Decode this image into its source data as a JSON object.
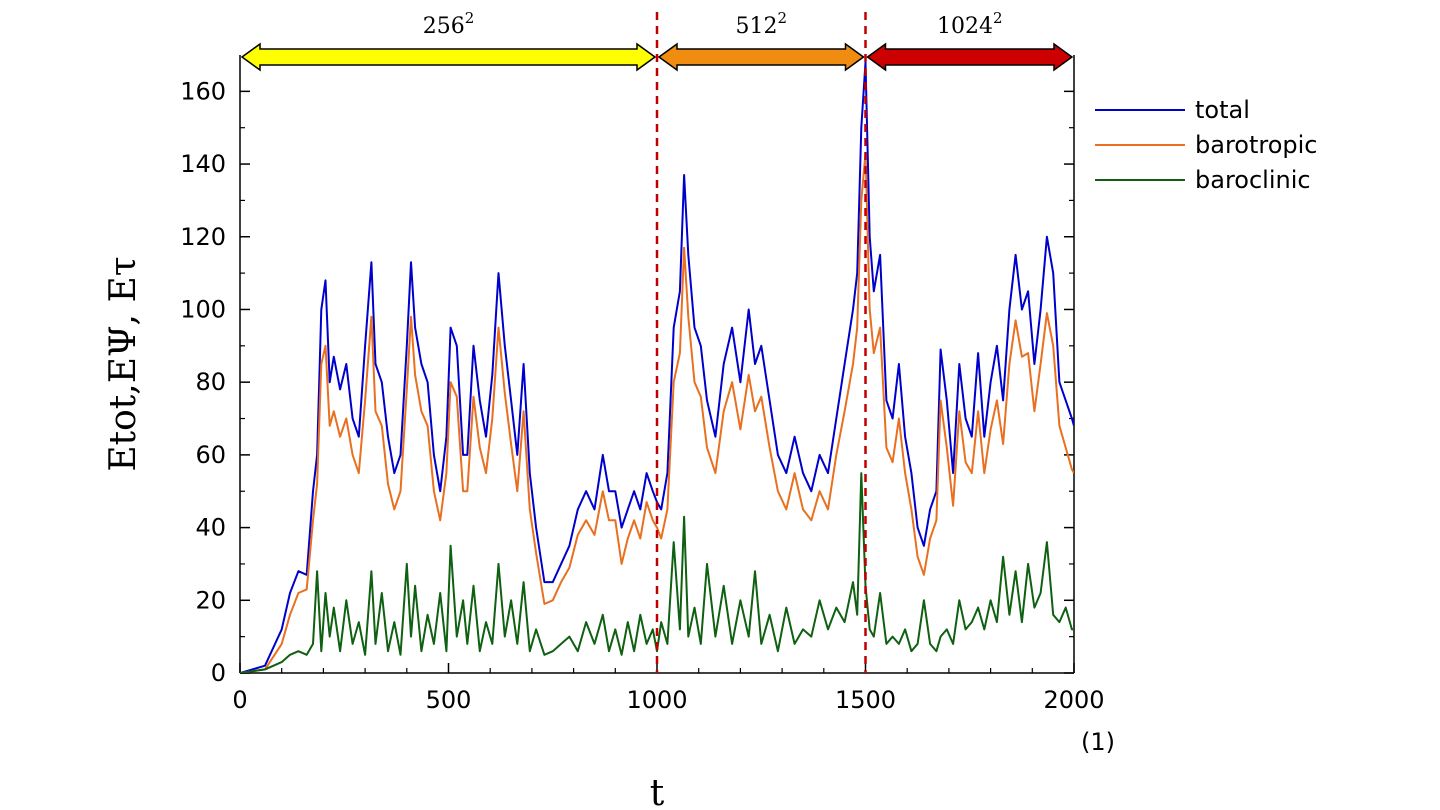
{
  "chart_data": {
    "type": "line",
    "xlabel": "t",
    "ylabel": "Etot,EΨ, Eτ",
    "xlim": [
      0,
      2000
    ],
    "ylim": [
      0,
      170
    ],
    "x_ticks": [
      "0",
      "500",
      "1000",
      "1500",
      "2000"
    ],
    "y_ticks": [
      "0",
      "20",
      "40",
      "60",
      "80",
      "100",
      "120",
      "140",
      "160"
    ],
    "figure_number": "(1)",
    "grid": false,
    "legend_position": "top-right (outside plot)",
    "resolution_segments": [
      {
        "label_base": "256",
        "label_exp": "2",
        "x_start": 0,
        "x_end": 1000,
        "color": "#ffff00"
      },
      {
        "label_base": "512",
        "label_exp": "2",
        "x_start": 1000,
        "x_end": 1500,
        "color": "#f08c10"
      },
      {
        "label_base": "1024",
        "label_exp": "2",
        "x_start": 1500,
        "x_end": 2000,
        "color": "#cc0000"
      }
    ],
    "dashed_lines_x": [
      1000,
      1500
    ],
    "dashed_color": "#c00000",
    "series": [
      {
        "name": "total",
        "color": "#0000cc",
        "x": [
          0,
          60,
          100,
          120,
          140,
          160,
          175,
          185,
          195,
          205,
          215,
          225,
          240,
          255,
          270,
          285,
          300,
          315,
          325,
          340,
          355,
          370,
          385,
          400,
          410,
          420,
          435,
          450,
          465,
          480,
          495,
          505,
          520,
          535,
          545,
          560,
          575,
          590,
          605,
          620,
          635,
          650,
          665,
          680,
          695,
          710,
          730,
          750,
          770,
          790,
          810,
          830,
          850,
          870,
          885,
          900,
          915,
          930,
          945,
          960,
          975,
          990,
          1000,
          1010,
          1025,
          1040,
          1055,
          1065,
          1075,
          1090,
          1105,
          1120,
          1140,
          1160,
          1180,
          1200,
          1220,
          1235,
          1250,
          1270,
          1290,
          1310,
          1330,
          1350,
          1370,
          1390,
          1410,
          1430,
          1450,
          1470,
          1480,
          1490,
          1500,
          1510,
          1520,
          1535,
          1550,
          1565,
          1580,
          1595,
          1610,
          1625,
          1640,
          1655,
          1670,
          1680,
          1695,
          1710,
          1725,
          1740,
          1755,
          1770,
          1785,
          1800,
          1815,
          1830,
          1845,
          1860,
          1875,
          1890,
          1905,
          1920,
          1935,
          1950,
          1965,
          1980,
          1995,
          2000
        ],
        "values": [
          0,
          2,
          12,
          22,
          28,
          27,
          50,
          60,
          100,
          108,
          80,
          87,
          78,
          85,
          70,
          65,
          90,
          113,
          85,
          80,
          65,
          55,
          60,
          90,
          113,
          95,
          85,
          80,
          60,
          50,
          65,
          95,
          90,
          60,
          60,
          90,
          75,
          65,
          82,
          110,
          90,
          75,
          60,
          85,
          55,
          40,
          25,
          25,
          30,
          35,
          45,
          50,
          45,
          60,
          50,
          50,
          40,
          45,
          50,
          45,
          55,
          50,
          47,
          45,
          55,
          95,
          105,
          137,
          115,
          95,
          90,
          75,
          65,
          85,
          95,
          80,
          100,
          85,
          90,
          75,
          60,
          55,
          65,
          55,
          50,
          60,
          55,
          70,
          85,
          100,
          110,
          150,
          168,
          120,
          105,
          115,
          75,
          70,
          85,
          65,
          55,
          40,
          35,
          45,
          50,
          89,
          75,
          55,
          85,
          70,
          65,
          88,
          65,
          80,
          90,
          75,
          100,
          115,
          100,
          105,
          85,
          100,
          120,
          110,
          80,
          75,
          70,
          68
        ]
      },
      {
        "name": "barotropic",
        "color": "#e87020",
        "x": [
          0,
          60,
          100,
          120,
          140,
          160,
          175,
          185,
          195,
          205,
          215,
          225,
          240,
          255,
          270,
          285,
          300,
          315,
          325,
          340,
          355,
          370,
          385,
          400,
          410,
          420,
          435,
          450,
          465,
          480,
          495,
          505,
          520,
          535,
          545,
          560,
          575,
          590,
          605,
          620,
          635,
          650,
          665,
          680,
          695,
          710,
          730,
          750,
          770,
          790,
          810,
          830,
          850,
          870,
          885,
          900,
          915,
          930,
          945,
          960,
          975,
          990,
          1000,
          1010,
          1025,
          1040,
          1055,
          1065,
          1075,
          1090,
          1105,
          1120,
          1140,
          1160,
          1180,
          1200,
          1220,
          1235,
          1250,
          1270,
          1290,
          1310,
          1330,
          1350,
          1370,
          1390,
          1410,
          1430,
          1450,
          1470,
          1480,
          1490,
          1500,
          1510,
          1520,
          1535,
          1550,
          1565,
          1580,
          1595,
          1610,
          1625,
          1640,
          1655,
          1670,
          1680,
          1695,
          1710,
          1725,
          1740,
          1755,
          1770,
          1785,
          1800,
          1815,
          1830,
          1845,
          1860,
          1875,
          1890,
          1905,
          1920,
          1935,
          1950,
          1965,
          1980,
          1995,
          2000
        ],
        "values": [
          0,
          1,
          8,
          16,
          22,
          23,
          42,
          52,
          85,
          90,
          68,
          72,
          65,
          70,
          60,
          55,
          75,
          98,
          72,
          68,
          52,
          45,
          50,
          78,
          98,
          82,
          72,
          68,
          50,
          42,
          55,
          80,
          76,
          50,
          50,
          76,
          62,
          55,
          70,
          95,
          77,
          63,
          50,
          72,
          45,
          33,
          19,
          20,
          25,
          29,
          38,
          42,
          38,
          50,
          42,
          42,
          30,
          37,
          42,
          37,
          47,
          42,
          40,
          37,
          45,
          80,
          88,
          117,
          98,
          80,
          76,
          62,
          55,
          72,
          80,
          67,
          82,
          72,
          76,
          62,
          50,
          45,
          55,
          45,
          42,
          50,
          45,
          60,
          72,
          85,
          95,
          130,
          143,
          100,
          88,
          95,
          62,
          58,
          70,
          55,
          45,
          32,
          27,
          37,
          42,
          75,
          62,
          46,
          72,
          58,
          55,
          72,
          55,
          67,
          75,
          63,
          85,
          97,
          87,
          88,
          72,
          85,
          99,
          90,
          68,
          62,
          56,
          55
        ]
      },
      {
        "name": "baroclinic",
        "color": "#0f6010",
        "x": [
          0,
          60,
          100,
          120,
          140,
          160,
          175,
          185,
          195,
          205,
          215,
          225,
          240,
          255,
          270,
          285,
          300,
          315,
          325,
          340,
          355,
          370,
          385,
          400,
          410,
          420,
          435,
          450,
          465,
          480,
          495,
          505,
          520,
          535,
          545,
          560,
          575,
          590,
          605,
          620,
          635,
          650,
          665,
          680,
          695,
          710,
          730,
          750,
          770,
          790,
          810,
          830,
          850,
          870,
          885,
          900,
          915,
          930,
          945,
          960,
          975,
          990,
          1000,
          1010,
          1025,
          1040,
          1055,
          1065,
          1075,
          1090,
          1105,
          1120,
          1140,
          1160,
          1180,
          1200,
          1220,
          1235,
          1250,
          1270,
          1290,
          1310,
          1330,
          1350,
          1370,
          1390,
          1410,
          1430,
          1450,
          1470,
          1480,
          1490,
          1500,
          1510,
          1520,
          1535,
          1550,
          1565,
          1580,
          1595,
          1610,
          1625,
          1640,
          1655,
          1670,
          1680,
          1695,
          1710,
          1725,
          1740,
          1755,
          1770,
          1785,
          1800,
          1815,
          1830,
          1845,
          1860,
          1875,
          1890,
          1905,
          1920,
          1935,
          1950,
          1965,
          1980,
          1995,
          2000
        ],
        "values": [
          0,
          1,
          3,
          5,
          6,
          5,
          8,
          28,
          6,
          22,
          10,
          18,
          6,
          20,
          8,
          14,
          5,
          28,
          8,
          22,
          6,
          14,
          5,
          30,
          10,
          24,
          6,
          16,
          8,
          22,
          6,
          35,
          10,
          20,
          8,
          24,
          6,
          14,
          8,
          30,
          10,
          20,
          8,
          25,
          6,
          12,
          5,
          6,
          8,
          10,
          6,
          14,
          8,
          16,
          6,
          12,
          5,
          14,
          6,
          16,
          8,
          12,
          6,
          14,
          8,
          36,
          12,
          43,
          10,
          18,
          8,
          30,
          10,
          24,
          8,
          20,
          10,
          28,
          8,
          16,
          6,
          18,
          8,
          12,
          10,
          20,
          12,
          18,
          14,
          25,
          16,
          55,
          24,
          12,
          10,
          22,
          8,
          10,
          8,
          12,
          6,
          8,
          20,
          8,
          6,
          10,
          12,
          8,
          20,
          12,
          14,
          18,
          12,
          20,
          14,
          32,
          16,
          28,
          14,
          30,
          18,
          22,
          36,
          16,
          14,
          18,
          12,
          12
        ]
      }
    ]
  }
}
